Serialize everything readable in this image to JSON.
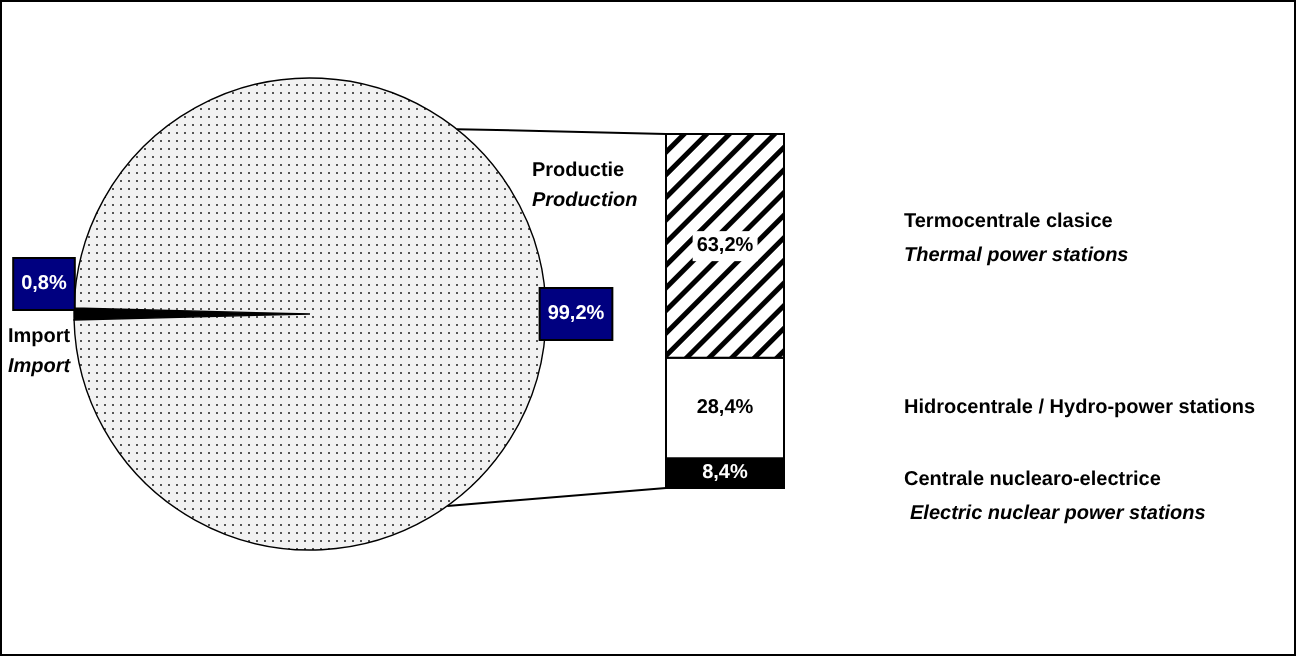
{
  "chart_data": [
    {
      "type": "pie",
      "categories": [
        "Import",
        "Productie"
      ],
      "values": [
        0.8,
        99.2
      ],
      "colors": [
        "#000000",
        "#f2f2f2"
      ],
      "value_labels": [
        "0,8%",
        "99,2%"
      ],
      "annotations": [
        "Import",
        "Production"
      ]
    },
    {
      "type": "bar",
      "stacked": true,
      "categories": [
        null
      ],
      "series": [
        {
          "name": "Centrale nuclearo-electrice",
          "color": "#000000",
          "values": [
            8.4
          ],
          "value_labels": [
            "8,4%"
          ]
        },
        {
          "name": "Hidrocentrale / Hydro-power stations",
          "color": "#ffffff",
          "values": [
            28.4
          ],
          "value_labels": [
            "28,4%"
          ]
        },
        {
          "name": "Termocentrale clasice",
          "color": "#000000",
          "values": [
            63.2
          ],
          "value_labels": [
            "63,2%"
          ]
        }
      ],
      "annotations": [
        "Electric nuclear power stations",
        null,
        "Thermal power stations"
      ]
    }
  ]
}
